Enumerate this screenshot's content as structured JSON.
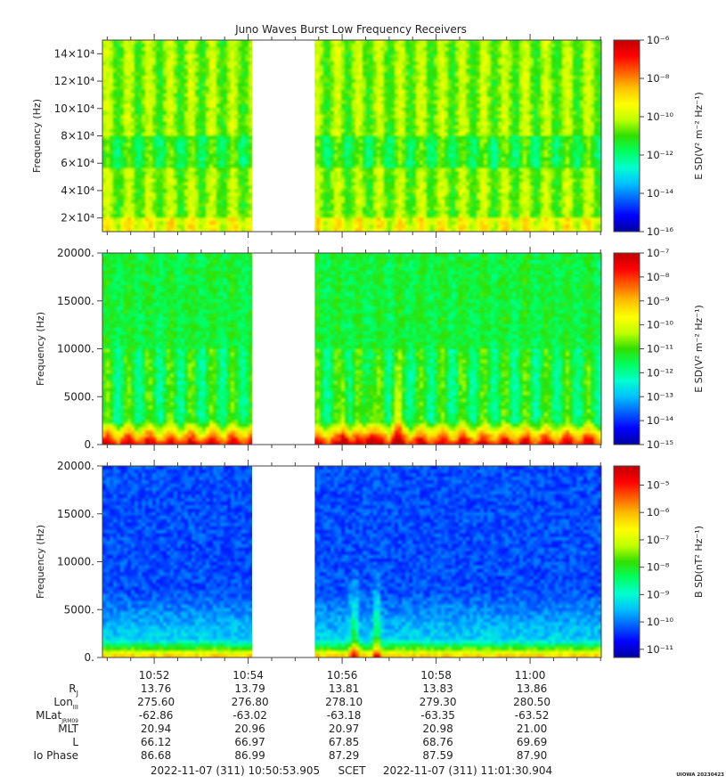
{
  "title": "Juno Waves Burst Low Frequency Receivers",
  "colors": {
    "colormap": [
      "#0000a0",
      "#0000ff",
      "#0060ff",
      "#00c0ff",
      "#00ffd0",
      "#00ff60",
      "#30e000",
      "#c0ff00",
      "#ffff00",
      "#ffc000",
      "#ff6000",
      "#ff0000",
      "#c00000"
    ],
    "gap": "#ffffff"
  },
  "chart_data": [
    {
      "type": "heatmap",
      "ylabel": "Frequency (Hz)",
      "ylim": [
        10000,
        150000
      ],
      "yticks": [
        {
          "value": 20000,
          "label": "2×10⁴"
        },
        {
          "value": 40000,
          "label": "4×10⁴"
        },
        {
          "value": 60000,
          "label": "6×10⁴"
        },
        {
          "value": 80000,
          "label": "8×10⁴"
        },
        {
          "value": 100000,
          "label": "10×10⁴"
        },
        {
          "value": 120000,
          "label": "12×10⁴"
        },
        {
          "value": 140000,
          "label": "14×10⁴"
        }
      ],
      "colorbar": {
        "label": "E SD(V² m⁻² Hz⁻¹)",
        "scale": "log",
        "range": [
          -16,
          -6
        ],
        "ticks": [
          "10⁻⁶",
          "10⁻⁸",
          "10⁻¹⁰",
          "10⁻¹²",
          "10⁻¹⁴",
          "10⁻¹⁶"
        ]
      },
      "data_gap": [
        "10:54:05",
        "10:55:25"
      ],
      "background_level": 0.55
    },
    {
      "type": "heatmap",
      "ylabel": "Frequency (Hz)",
      "ylim": [
        0,
        20000
      ],
      "yticks": [
        {
          "value": 0,
          "label": "0."
        },
        {
          "value": 5000,
          "label": "5000."
        },
        {
          "value": 10000,
          "label": "10000."
        },
        {
          "value": 15000,
          "label": "15000."
        },
        {
          "value": 20000,
          "label": "20000."
        }
      ],
      "colorbar": {
        "label": "E SD(V² m⁻² Hz⁻¹)",
        "scale": "log",
        "range": [
          -15,
          -7
        ],
        "ticks": [
          "10⁻⁷",
          "10⁻⁸",
          "10⁻⁹",
          "10⁻¹⁰",
          "10⁻¹¹",
          "10⁻¹²",
          "10⁻¹³",
          "10⁻¹⁴",
          "10⁻¹⁵"
        ]
      },
      "data_gap": [
        "10:54:05",
        "10:55:25"
      ],
      "background_level": 0.45
    },
    {
      "type": "heatmap",
      "ylabel": "Frequency (Hz)",
      "ylim": [
        0,
        20000
      ],
      "yticks": [
        {
          "value": 0,
          "label": "0."
        },
        {
          "value": 5000,
          "label": "5000."
        },
        {
          "value": 10000,
          "label": "10000."
        },
        {
          "value": 15000,
          "label": "15000."
        },
        {
          "value": 20000,
          "label": "20000."
        }
      ],
      "colorbar": {
        "label": "B SD(nT² Hz⁻¹)",
        "scale": "log",
        "range": [
          -11,
          -4.3
        ],
        "ticks": [
          "10⁻⁵",
          "10⁻⁶",
          "10⁻⁷",
          "10⁻⁸",
          "10⁻⁹",
          "10⁻¹⁰",
          "10⁻¹¹"
        ]
      },
      "data_gap": [
        "10:54:05",
        "10:55:25"
      ],
      "background_level": 0.15
    }
  ],
  "time_axis": {
    "start": "10:50:53.905",
    "end": "11:01:30.904",
    "tick_labels": [
      "10:52",
      "10:54",
      "10:56",
      "10:58",
      "11:00"
    ]
  },
  "ephemeris": {
    "labels": [
      "R",
      "Lon",
      "MLat",
      "MLT",
      "L",
      "Io Phase"
    ],
    "label_subscripts": [
      "J",
      "III",
      "JRM09",
      "",
      "",
      ""
    ],
    "columns": [
      [
        "13.76",
        "275.60",
        "-62.86",
        "20.94",
        "66.12",
        "86.68"
      ],
      [
        "13.79",
        "276.80",
        "-63.02",
        "20.96",
        "66.97",
        "86.99"
      ],
      [
        "13.81",
        "278.10",
        "-63.18",
        "20.97",
        "67.85",
        "87.29"
      ],
      [
        "13.83",
        "279.30",
        "-63.35",
        "20.98",
        "68.76",
        "87.59"
      ],
      [
        "13.86",
        "280.50",
        "-63.52",
        "21.00",
        "69.69",
        "87.90"
      ]
    ]
  },
  "footer": {
    "start_text": "2022-11-07 (311) 10:50:53.905",
    "mid_text": "SCET",
    "end_text": "2022-11-07 (311) 11:01:30.904",
    "credit": "UIOWA 20230423"
  }
}
